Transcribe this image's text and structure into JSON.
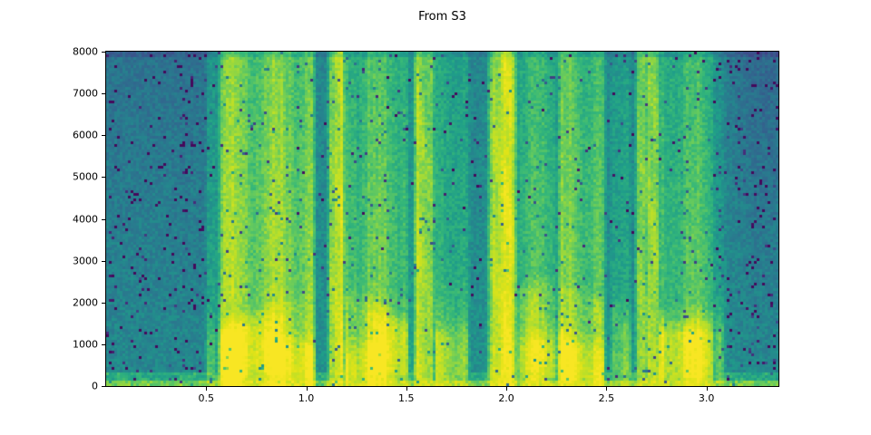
{
  "chart_data": {
    "type": "heatmap",
    "subtype": "audio-spectrogram",
    "title": "From S3",
    "xlabel": "",
    "ylabel": "",
    "xlim": [
      0,
      3.36
    ],
    "ylim": [
      0,
      8000
    ],
    "x_ticks": [
      0.5,
      1.0,
      1.5,
      2.0,
      2.5,
      3.0
    ],
    "x_tick_labels": [
      "0.5",
      "1.0",
      "1.5",
      "2.0",
      "2.5",
      "3.0"
    ],
    "y_ticks": [
      0,
      1000,
      2000,
      3000,
      4000,
      5000,
      6000,
      7000,
      8000
    ],
    "y_tick_labels": [
      "0",
      "1000",
      "2000",
      "3000",
      "4000",
      "5000",
      "6000",
      "7000",
      "8000"
    ],
    "legend": null,
    "grid_lines": false,
    "colormap": {
      "name": "viridis",
      "stops": [
        [
          0.0,
          68,
          1,
          84
        ],
        [
          0.1,
          72,
          40,
          120
        ],
        [
          0.2,
          62,
          74,
          137
        ],
        [
          0.3,
          49,
          104,
          142
        ],
        [
          0.4,
          38,
          130,
          142
        ],
        [
          0.5,
          31,
          158,
          137
        ],
        [
          0.6,
          53,
          183,
          121
        ],
        [
          0.7,
          109,
          205,
          89
        ],
        [
          0.8,
          180,
          222,
          44
        ],
        [
          0.9,
          223,
          227,
          24
        ],
        [
          1.0,
          253,
          231,
          37
        ]
      ]
    },
    "background_level": 0.45,
    "speech_segments": [
      {
        "start": 0.5,
        "end": 0.56,
        "amp": 0.3,
        "high_freq": 0.5,
        "kind": "weak"
      },
      {
        "start": 0.565,
        "end": 1.04,
        "amp": 1.0,
        "high_freq": 0.8,
        "kind": "voiced"
      },
      {
        "start": 1.11,
        "end": 1.19,
        "amp": 1.0,
        "high_freq": 0.95,
        "kind": "burst"
      },
      {
        "start": 1.19,
        "end": 1.51,
        "amp": 0.92,
        "high_freq": 0.65,
        "kind": "voiced"
      },
      {
        "start": 1.54,
        "end": 1.64,
        "amp": 1.0,
        "high_freq": 0.95,
        "kind": "burst"
      },
      {
        "start": 1.64,
        "end": 1.81,
        "amp": 0.6,
        "high_freq": 0.55,
        "kind": "voiced"
      },
      {
        "start": 1.91,
        "end": 2.05,
        "amp": 1.0,
        "high_freq": 0.95,
        "kind": "burst"
      },
      {
        "start": 2.05,
        "end": 2.26,
        "amp": 0.75,
        "high_freq": 0.6,
        "kind": "voiced"
      },
      {
        "start": 2.26,
        "end": 2.49,
        "amp": 0.9,
        "high_freq": 0.7,
        "kind": "voiced"
      },
      {
        "start": 2.52,
        "end": 2.62,
        "amp": 0.5,
        "high_freq": 0.5,
        "kind": "weak"
      },
      {
        "start": 2.65,
        "end": 2.76,
        "amp": 1.0,
        "high_freq": 0.95,
        "kind": "burst"
      },
      {
        "start": 2.76,
        "end": 3.04,
        "amp": 0.85,
        "high_freq": 0.6,
        "kind": "voiced"
      },
      {
        "start": 3.04,
        "end": 3.09,
        "amp": 0.35,
        "high_freq": 0.4,
        "kind": "weak"
      }
    ],
    "quiet_regions": [
      {
        "start": 0.0,
        "end": 0.5
      },
      {
        "start": 3.05,
        "end": 3.36
      }
    ],
    "bottom_band": {
      "max_hz": 150,
      "level": 0.7,
      "speech_boost": 0.26
    },
    "formants": [
      {
        "base": 550,
        "range": 250,
        "rate": 9.0,
        "phase": 0.7
      },
      {
        "base": 1600,
        "range": 700,
        "rate": 5.3,
        "phase": 2.1
      },
      {
        "base": 3000,
        "range": 500,
        "rate": 3.7,
        "phase": 4.0
      }
    ],
    "harmonic_spacing_hz": 230,
    "grid": {
      "cols": 247,
      "rows": 123
    },
    "noise": {
      "jitter": 0.11,
      "speckle_prob": 0.025,
      "quiet_speckle_prob": 0.05,
      "seed": 1234
    }
  }
}
